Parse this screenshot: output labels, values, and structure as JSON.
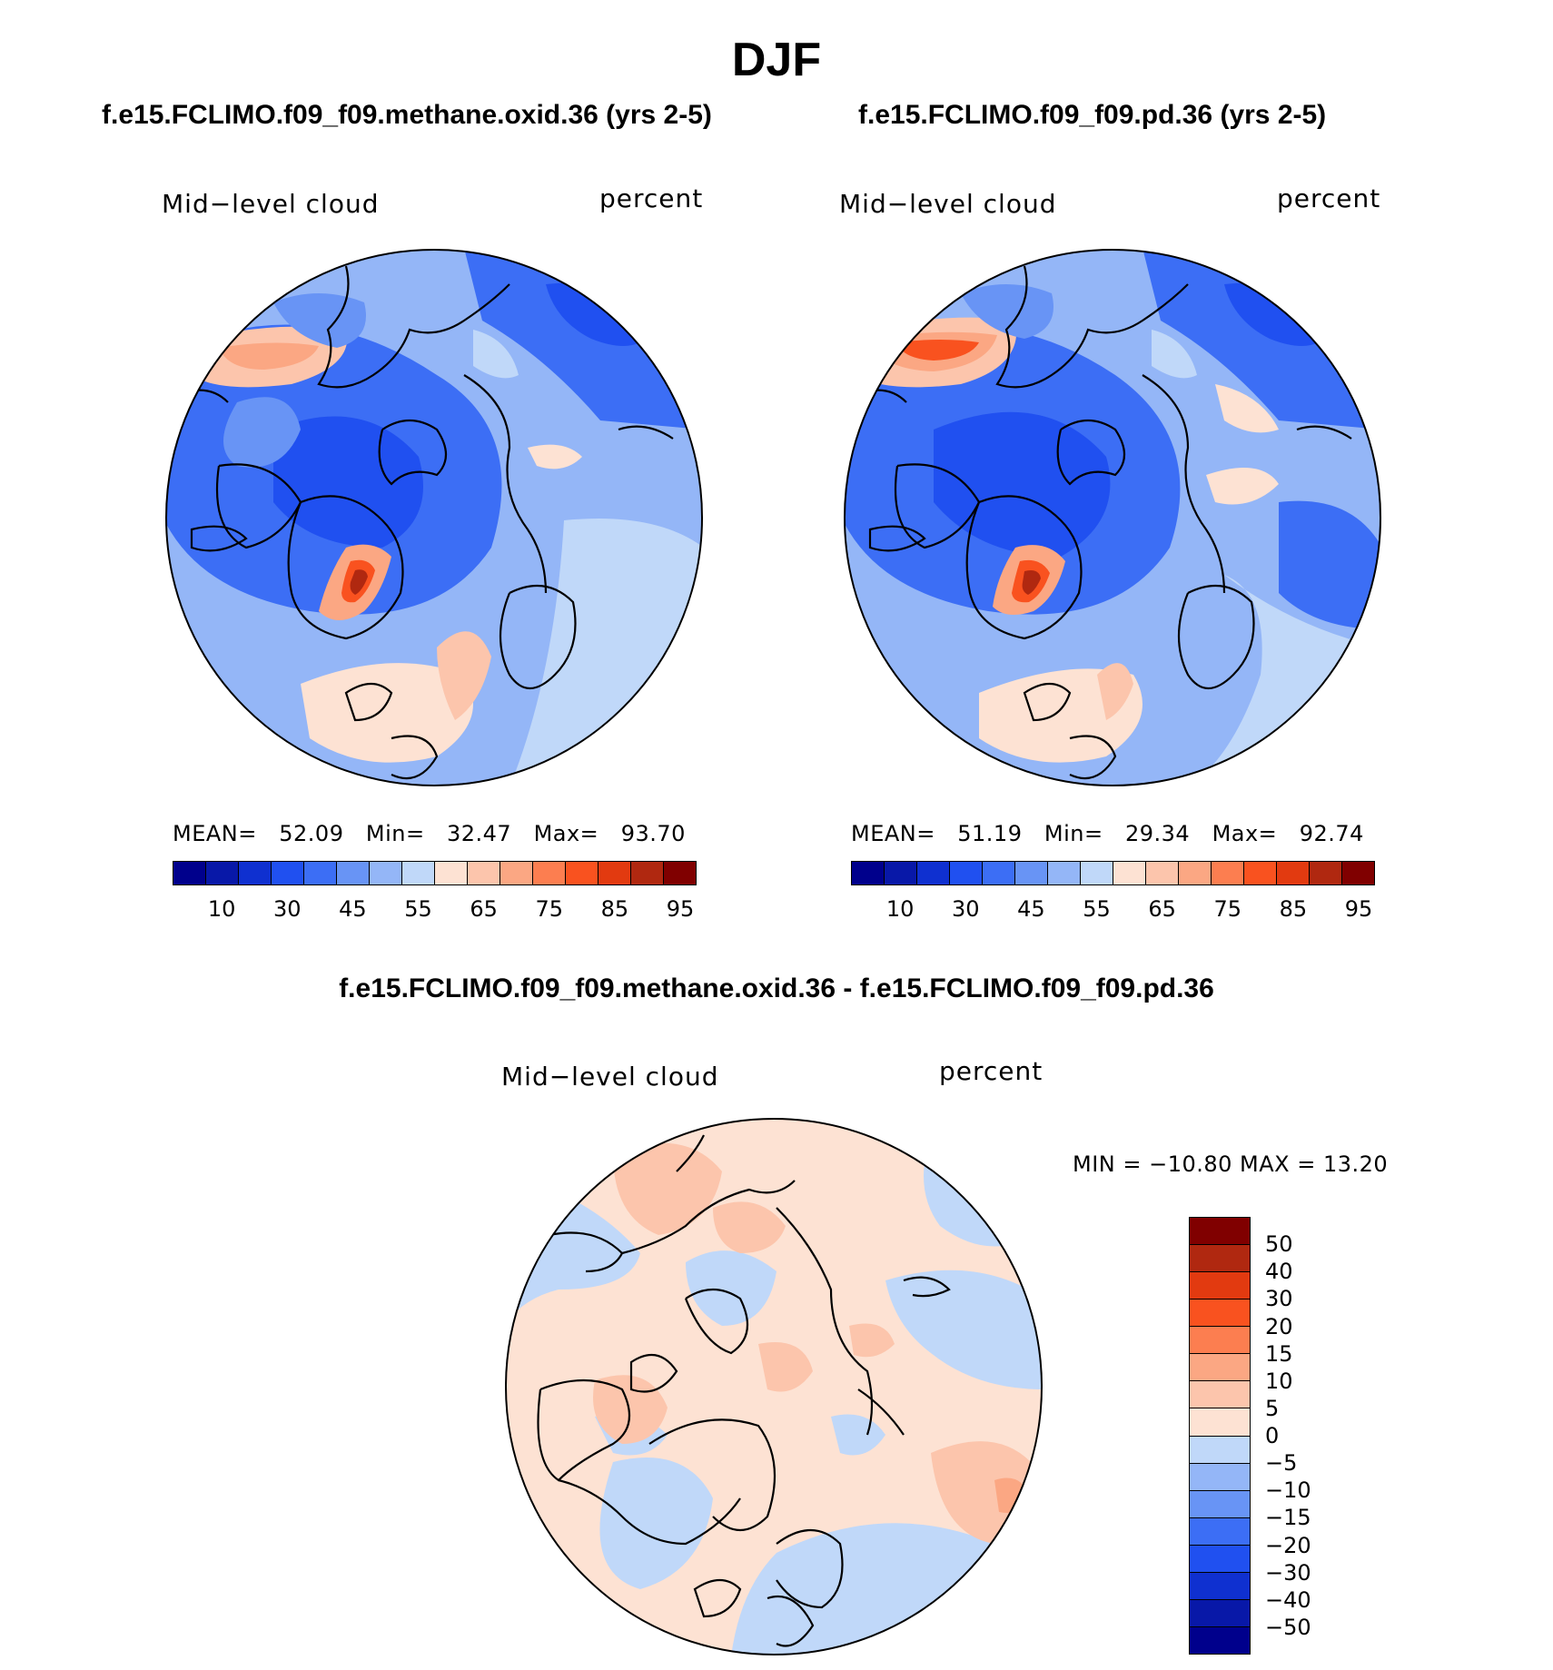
{
  "figure": {
    "season": "DJF",
    "diff_title": "f.e15.FCLIMO.f09_f09.methane.oxid.36 - f.e15.FCLIMO.f09_f09.pd.36"
  },
  "panels": [
    {
      "case": "f.e15.FCLIMO.f09_f09.methane.oxid.36 (yrs 2-5)",
      "variable": "Mid−level cloud",
      "units": "percent",
      "mean_label": "MEAN=",
      "mean": "52.09",
      "min_label": "Min=",
      "min": "32.47",
      "max_label": "Max=",
      "max": "93.70"
    },
    {
      "case": "f.e15.FCLIMO.f09_f09.pd.36 (yrs 2-5)",
      "variable": "Mid−level cloud",
      "units": "percent",
      "mean_label": "MEAN=",
      "mean": "51.19",
      "min_label": "Min=",
      "min": "29.34",
      "max_label": "Max=",
      "max": "92.74"
    }
  ],
  "diff_panel": {
    "variable": "Mid−level cloud",
    "units": "percent",
    "minmax_text": "MIN = −10.80 MAX =   13.20"
  },
  "colorbar_h": {
    "colors": [
      "#00008c",
      "#0818a8",
      "#0f30d0",
      "#2050f0",
      "#3c6ef5",
      "#6894f5",
      "#94b6f7",
      "#c0d8f9",
      "#fde2d3",
      "#fcc5ac",
      "#fba783",
      "#fc7e50",
      "#f9521f",
      "#e23a10",
      "#b02810",
      "#800000"
    ],
    "tick_labels": [
      "10",
      "30",
      "45",
      "55",
      "65",
      "75",
      "85",
      "95"
    ]
  },
  "colorbar_v": {
    "colors": [
      "#800000",
      "#b02810",
      "#e23a10",
      "#f9521f",
      "#fc7e50",
      "#fba783",
      "#fcc5ac",
      "#fde2d3",
      "#c0d8f9",
      "#94b6f7",
      "#6894f5",
      "#3c6ef5",
      "#2050f0",
      "#0f30d0",
      "#0818a8",
      "#00008c"
    ],
    "tick_labels": [
      "50",
      "40",
      "30",
      "20",
      "15",
      "10",
      "5",
      "0",
      "−5",
      "−10",
      "−15",
      "−20",
      "−30",
      "−40",
      "−50"
    ]
  },
  "icons": {
    "map_1": "polar-cloud-map",
    "map_2": "polar-cloud-map",
    "map_3": "polar-difference-map"
  }
}
